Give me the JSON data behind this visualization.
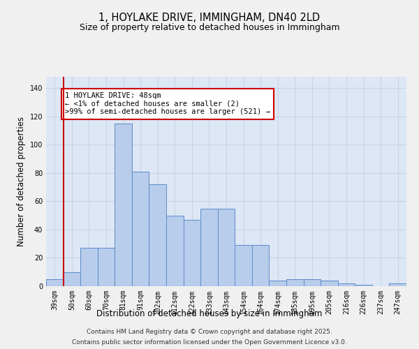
{
  "title_line1": "1, HOYLAKE DRIVE, IMMINGHAM, DN40 2LD",
  "title_line2": "Size of property relative to detached houses in Immingham",
  "xlabel": "Distribution of detached houses by size in Immingham",
  "ylabel": "Number of detached properties",
  "categories": [
    "39sqm",
    "50sqm",
    "60sqm",
    "70sqm",
    "81sqm",
    "91sqm",
    "102sqm",
    "112sqm",
    "122sqm",
    "133sqm",
    "143sqm",
    "154sqm",
    "164sqm",
    "174sqm",
    "185sqm",
    "195sqm",
    "205sqm",
    "216sqm",
    "226sqm",
    "237sqm",
    "247sqm"
  ],
  "values": [
    5,
    10,
    27,
    27,
    115,
    81,
    72,
    50,
    47,
    55,
    55,
    29,
    29,
    4,
    5,
    5,
    4,
    2,
    1,
    0,
    2
  ],
  "bar_color": "#b8cceb",
  "bar_edge_color": "#5b8bc9",
  "grid_color": "#c8d4e8",
  "bg_color": "#dde7f5",
  "fig_color": "#f0f0f0",
  "annotation_text": "1 HOYLAKE DRIVE: 48sqm\n← <1% of detached houses are smaller (2)\n>99% of semi-detached houses are larger (521) →",
  "annotation_box_color": "#ffffff",
  "annotation_box_edge": "#cc0000",
  "vline_color": "#cc0000",
  "ylim": [
    0,
    148
  ],
  "yticks": [
    0,
    20,
    40,
    60,
    80,
    100,
    120,
    140
  ],
  "footer_line1": "Contains HM Land Registry data © Crown copyright and database right 2025.",
  "footer_line2": "Contains public sector information licensed under the Open Government Licence v3.0.",
  "title_fontsize": 10.5,
  "subtitle_fontsize": 9,
  "axis_label_fontsize": 8.5,
  "tick_fontsize": 7,
  "annotation_fontsize": 7.5,
  "footer_fontsize": 6.5
}
